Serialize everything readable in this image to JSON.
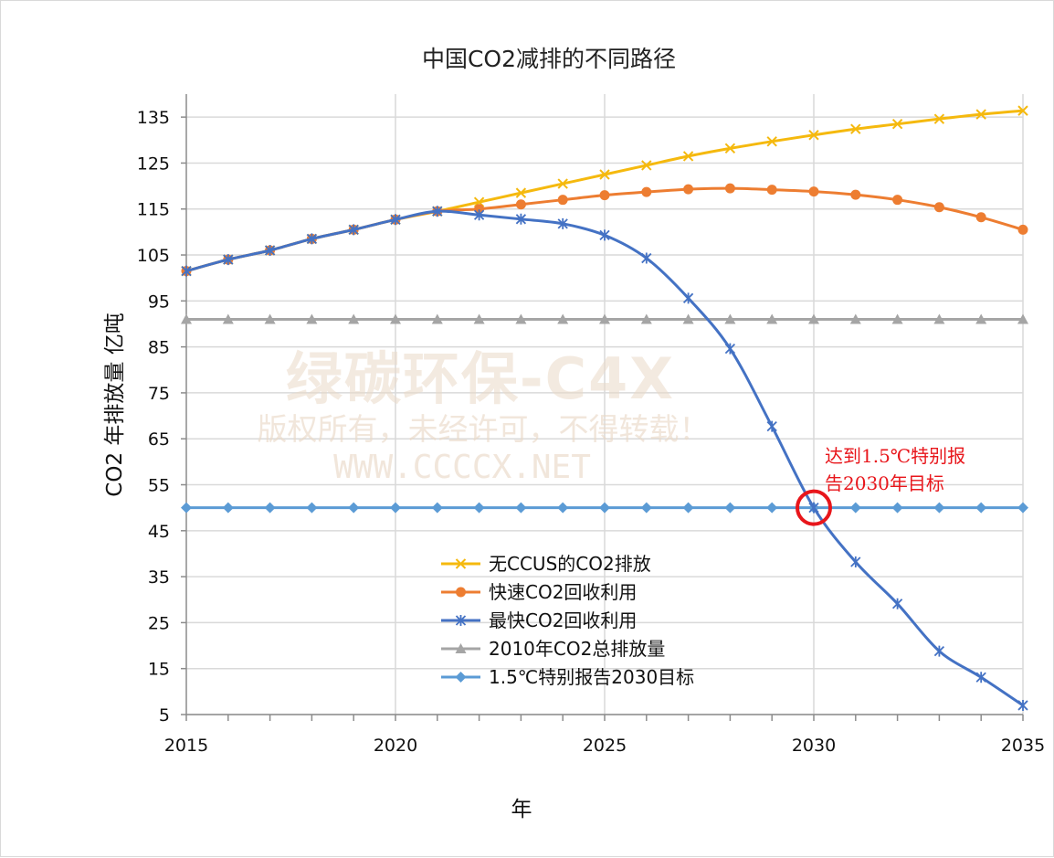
{
  "chart_data": {
    "type": "line",
    "title": "中国CO2减排的不同路径",
    "xlabel": "年",
    "ylabel": "CO2 年排放量 亿吨",
    "xlim": [
      2015,
      2035
    ],
    "ylim": [
      5,
      140
    ],
    "x_ticks": [
      2015,
      2020,
      2025,
      2030,
      2035
    ],
    "y_ticks": [
      5,
      15,
      25,
      35,
      45,
      55,
      65,
      75,
      85,
      95,
      105,
      115,
      125,
      135
    ],
    "grid": "both",
    "legend_position": "lower-center",
    "x": [
      2015,
      2016,
      2017,
      2018,
      2019,
      2020,
      2021,
      2022,
      2023,
      2024,
      2025,
      2026,
      2027,
      2028,
      2029,
      2030,
      2031,
      2032,
      2033,
      2034,
      2035
    ],
    "series": [
      {
        "name": "无CCUS的CO2排放",
        "color": "#f5b90e",
        "marker": "x",
        "values": [
          101.5,
          104,
          106,
          108.5,
          110.5,
          112.7,
          114.5,
          116.5,
          118.5,
          120.5,
          122.5,
          124.5,
          126.5,
          128.2,
          129.7,
          131.1,
          132.4,
          133.5,
          134.6,
          135.6,
          136.4
        ]
      },
      {
        "name": "快速CO2回收利用",
        "color": "#ed7d31",
        "marker": "circle",
        "values": [
          101.5,
          104,
          106,
          108.5,
          110.5,
          112.7,
          114.5,
          115,
          116,
          117,
          118,
          118.7,
          119.3,
          119.5,
          119.2,
          118.8,
          118.1,
          117,
          115.4,
          113.2,
          110.5
        ]
      },
      {
        "name": "最快CO2回收利用",
        "color": "#4472c4",
        "marker": "star",
        "values": [
          101.5,
          104,
          106,
          108.5,
          110.5,
          112.7,
          114.5,
          113.7,
          112.8,
          111.8,
          109.3,
          104.3,
          95.6,
          84.6,
          67.7,
          50,
          38.2,
          29.1,
          18.8,
          13.1,
          7
        ]
      },
      {
        "name": "2010年CO2总排放量",
        "color": "#a5a5a5",
        "marker": "triangle",
        "values": [
          91,
          91,
          91,
          91,
          91,
          91,
          91,
          91,
          91,
          91,
          91,
          91,
          91,
          91,
          91,
          91,
          91,
          91,
          91,
          91,
          91
        ]
      },
      {
        "name": "1.5℃特别报告2030目标",
        "color": "#5b9bd5",
        "marker": "diamond",
        "values": [
          50,
          50,
          50,
          50,
          50,
          50,
          50,
          50,
          50,
          50,
          50,
          50,
          50,
          50,
          50,
          50,
          50,
          50,
          50,
          50,
          50
        ]
      }
    ],
    "annotation": {
      "line1": "达到1.5℃特别报",
      "line2": "告2030年目标",
      "color": "#e8161b",
      "x": 2030,
      "y": 50
    },
    "watermark": {
      "line1": "绿碳环保-C4X",
      "line2": "版权所有，未经许可，不得转载！",
      "line3": "WWW.CCCCX.NET"
    }
  }
}
